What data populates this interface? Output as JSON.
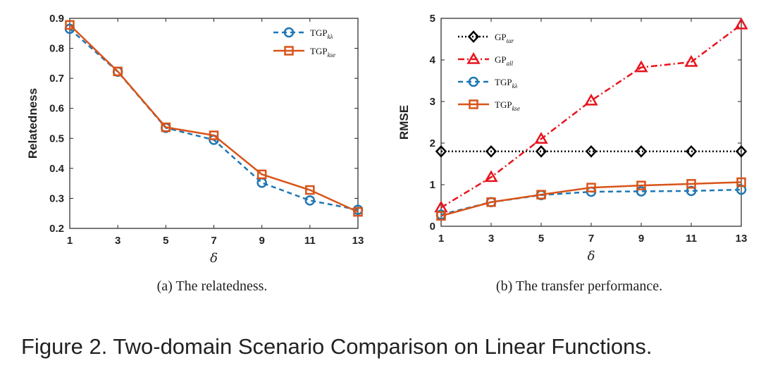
{
  "figure_caption": "Figure 2. Two-domain Scenario Comparison on Linear Functions.",
  "chart_data": [
    {
      "type": "line",
      "caption": "(a)  The relatedness.",
      "xlabel": "δ",
      "ylabel": "Relatedness",
      "x": [
        1,
        3,
        5,
        7,
        9,
        11,
        13
      ],
      "xlim": [
        1,
        13
      ],
      "ylim": [
        0.2,
        0.9
      ],
      "yticks": [
        0.2,
        0.3,
        0.4,
        0.5,
        0.6,
        0.7,
        0.8,
        0.9
      ],
      "grid": false,
      "legend_position": "top-right",
      "series": [
        {
          "name": "TGP",
          "sub": "kλ",
          "values": [
            0.865,
            0.722,
            0.535,
            0.495,
            0.352,
            0.293,
            0.262
          ],
          "color": "#1f77b4",
          "dash": "dashed",
          "marker": "circle"
        },
        {
          "name": "TGP",
          "sub": "kse",
          "values": [
            0.878,
            0.723,
            0.537,
            0.51,
            0.38,
            0.328,
            0.255
          ],
          "color": "#d95319",
          "dash": "solid",
          "marker": "square"
        }
      ]
    },
    {
      "type": "line",
      "caption": "(b)  The transfer performance.",
      "xlabel": "δ",
      "ylabel": "RMSE",
      "x": [
        1,
        3,
        5,
        7,
        9,
        11,
        13
      ],
      "xlim": [
        1,
        13
      ],
      "ylim": [
        0,
        5
      ],
      "yticks": [
        0,
        1,
        2,
        3,
        4,
        5
      ],
      "grid": false,
      "legend_position": "top-left",
      "series": [
        {
          "name": "GP",
          "sub": "tar",
          "values": [
            1.8,
            1.8,
            1.8,
            1.8,
            1.8,
            1.8,
            1.8
          ],
          "color": "#000000",
          "dash": "dotted",
          "marker": "diamond"
        },
        {
          "name": "GP",
          "sub": "all",
          "values": [
            0.45,
            1.18,
            2.1,
            3.02,
            3.82,
            3.95,
            4.85
          ],
          "color": "#e8141e",
          "dash": "dashdot",
          "marker": "triangle"
        },
        {
          "name": "TGP",
          "sub": "kλ",
          "values": [
            0.28,
            0.58,
            0.75,
            0.83,
            0.84,
            0.85,
            0.88
          ],
          "color": "#1f77b4",
          "dash": "dashed",
          "marker": "circle"
        },
        {
          "name": "TGP",
          "sub": "kse",
          "values": [
            0.25,
            0.58,
            0.76,
            0.93,
            0.98,
            1.02,
            1.06
          ],
          "color": "#d95319",
          "dash": "solid",
          "marker": "square"
        }
      ]
    }
  ]
}
